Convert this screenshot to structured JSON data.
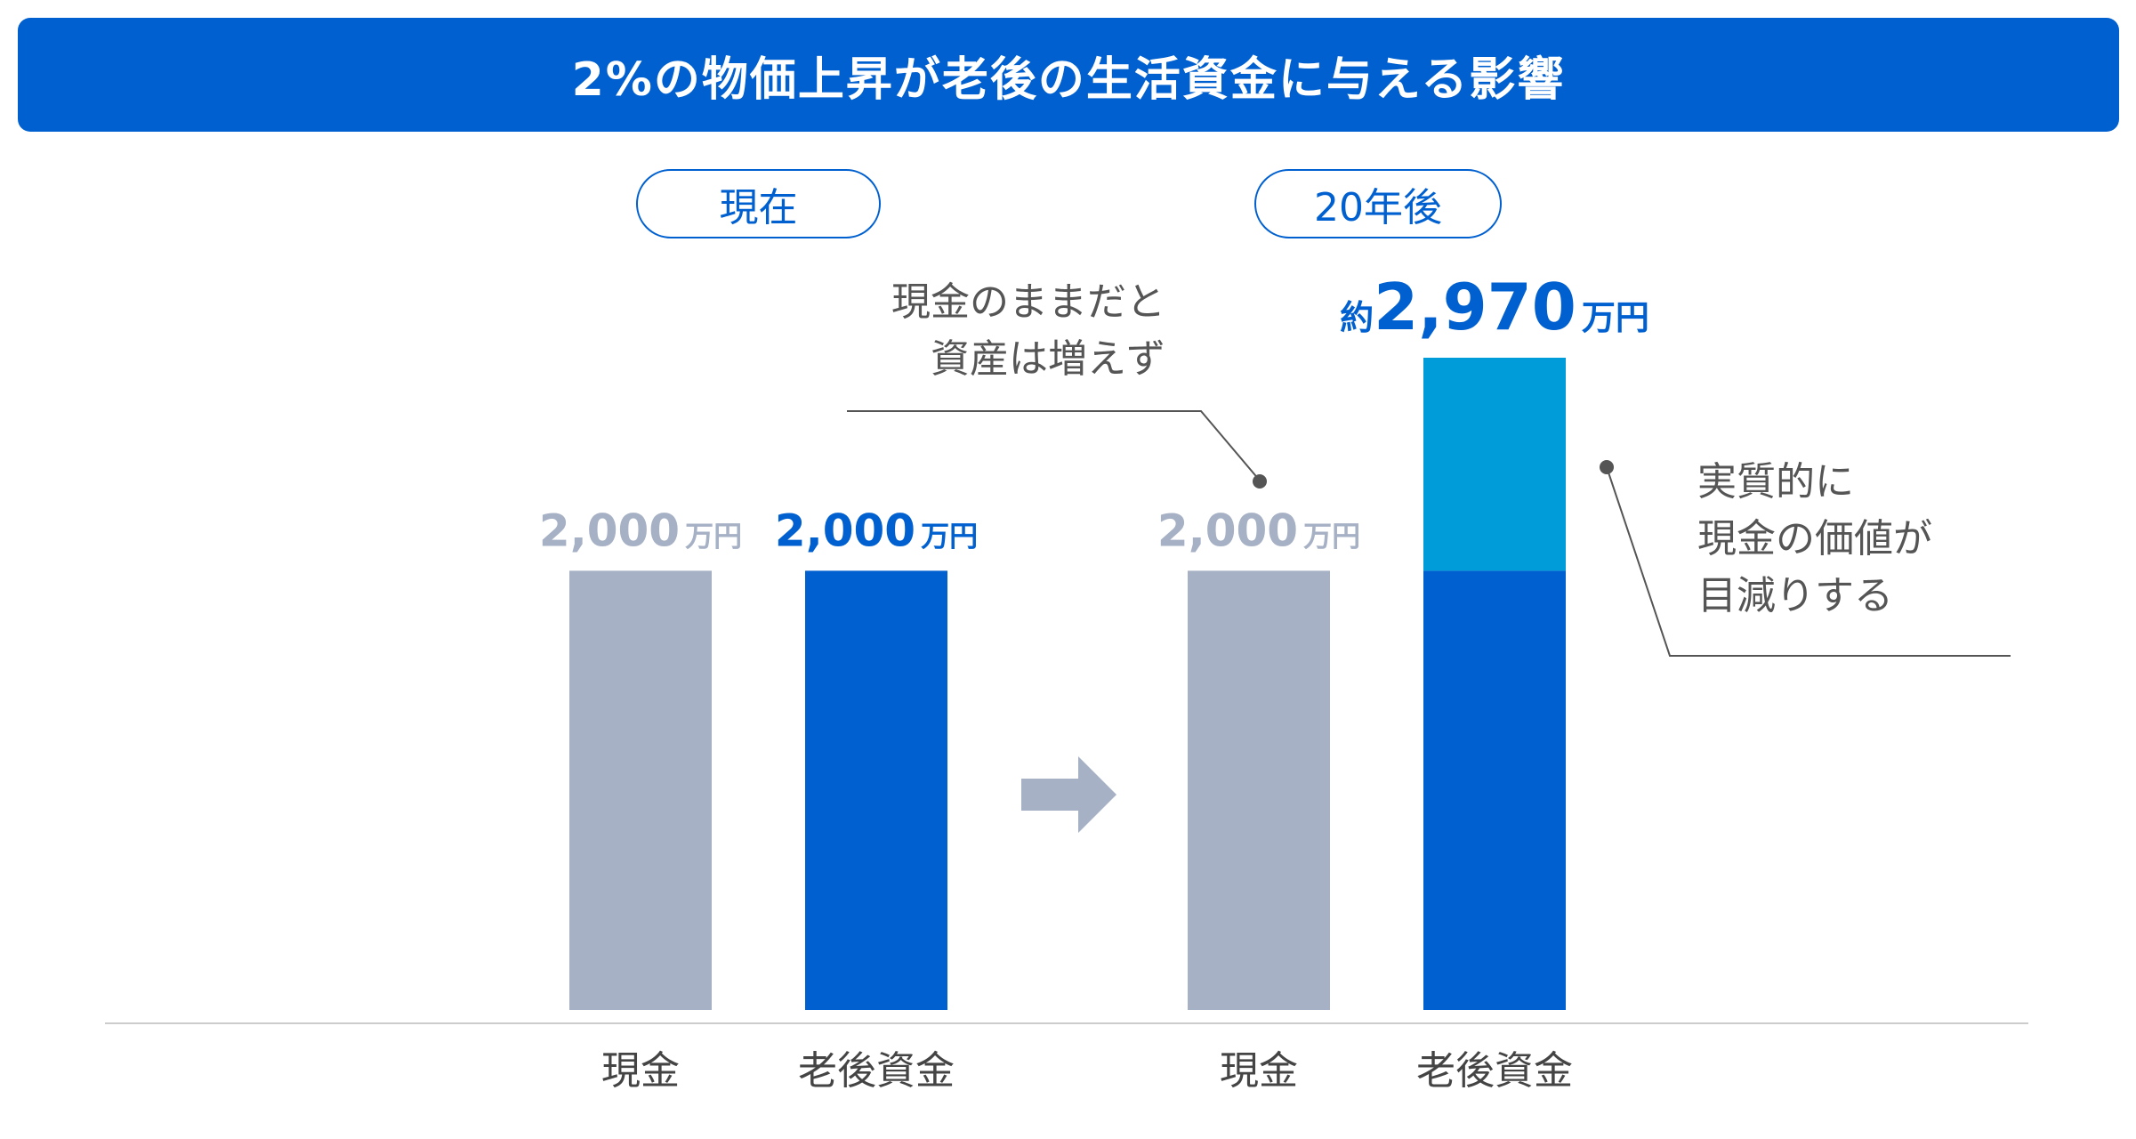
{
  "title": "2%の物価上昇が老後の生活資金に与える影響",
  "periods": [
    "現在",
    "20年後"
  ],
  "notes": {
    "cash_flat_line1": "現金のままだと",
    "cash_flat_line2": "資産は増えず",
    "value_loss_line1": "実質的に",
    "value_loss_line2": "現金の価値が",
    "value_loss_line3": "目減りする"
  },
  "colors": {
    "title_bg": "#0060d0",
    "cash": "#a6b1c5",
    "savings": "#0060d0",
    "increase": "#009cd9",
    "text": "#555555"
  },
  "chart_data": {
    "type": "bar",
    "stacked": true,
    "unit": "万円",
    "value_prefix_total": "約",
    "groups": [
      {
        "period": "現在",
        "bars": [
          {
            "category": "現金",
            "value": 2000,
            "label": "2,000",
            "color": "#a6b1c5"
          },
          {
            "category": "老後資金",
            "value": 2000,
            "label": "2,000",
            "color": "#0060d0"
          }
        ]
      },
      {
        "period": "20年後",
        "bars": [
          {
            "category": "現金",
            "value": 2000,
            "label": "2,000",
            "color": "#a6b1c5"
          },
          {
            "category": "老後資金",
            "value": 2970,
            "label": "2,970",
            "color": "#0060d0",
            "segments": [
              {
                "value": 2000,
                "color": "#0060d0"
              },
              {
                "value": 970,
                "color": "#009cd9"
              }
            ]
          }
        ]
      }
    ],
    "ylim": [
      0,
      2970
    ]
  }
}
